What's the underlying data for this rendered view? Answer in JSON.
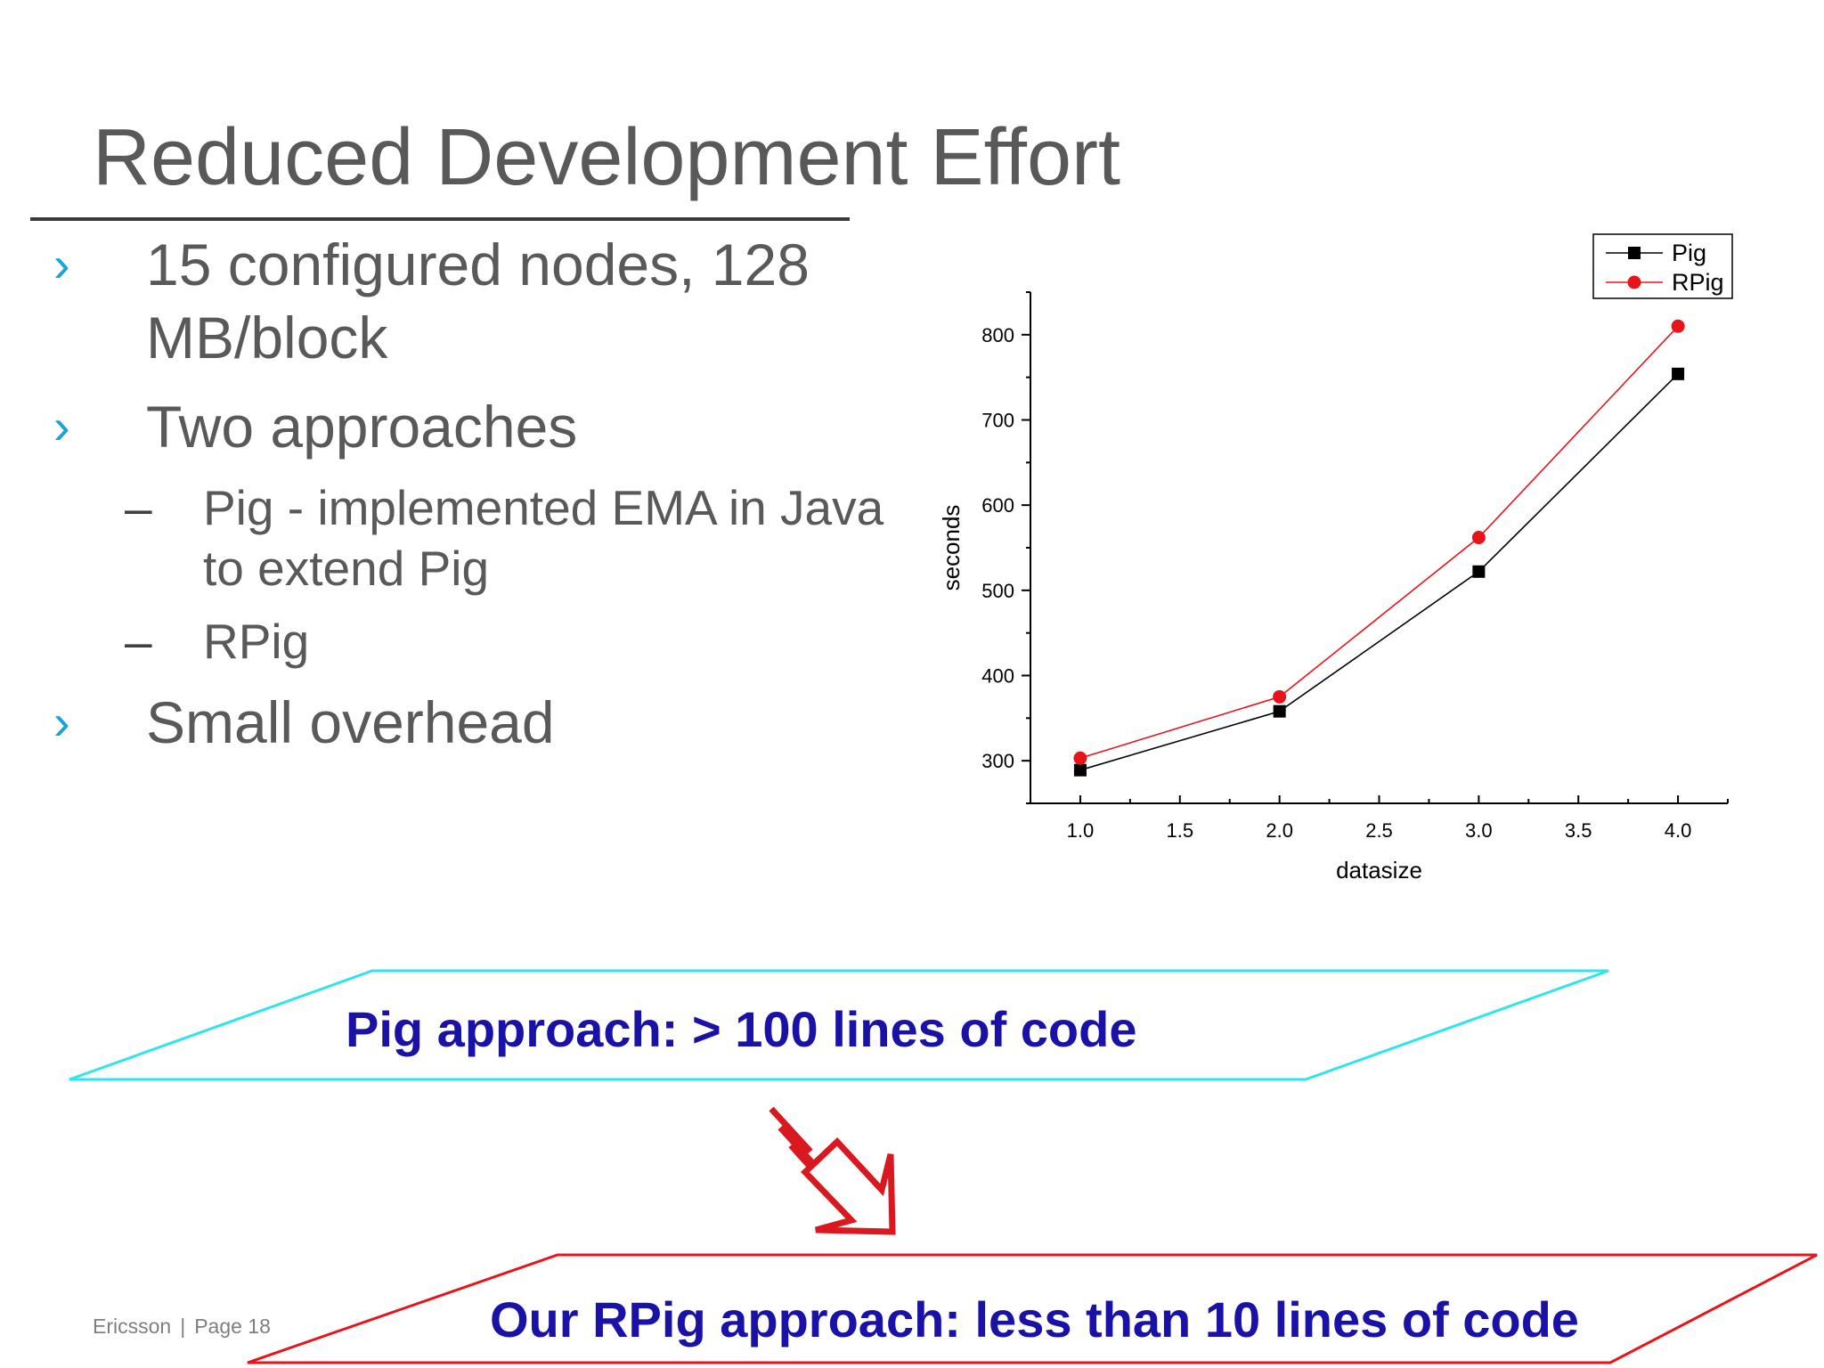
{
  "slide": {
    "title": "Reduced Development Effort"
  },
  "bullets": {
    "b1_line1": "15 configured nodes, 128",
    "b1_line2": "MB/block",
    "b2": "Two approaches",
    "b2_sub1_line1": "Pig - implemented EMA in Java",
    "b2_sub1_line2": "to extend Pig",
    "b2_sub2": "RPig",
    "b3": "Small overhead",
    "mark_l1": "›",
    "mark_l2": "–"
  },
  "chart_data": {
    "type": "line",
    "title": "",
    "xlabel": "datasize",
    "ylabel": "seconds",
    "xlim": [
      0.75,
      4.25
    ],
    "ylim": [
      250,
      850
    ],
    "x_ticks": [
      "1.0",
      "1.5",
      "2.0",
      "2.5",
      "3.0",
      "3.5",
      "4.0"
    ],
    "y_ticks": [
      "300",
      "400",
      "500",
      "600",
      "700",
      "800"
    ],
    "legend_position": "top-right",
    "series": [
      {
        "name": "Pig",
        "color": "#000000",
        "marker": "square",
        "x": [
          1.0,
          2.0,
          3.0,
          4.0
        ],
        "y": [
          289,
          358,
          522,
          754
        ]
      },
      {
        "name": "RPig",
        "color": "#e8141c",
        "marker": "circle",
        "x": [
          1.0,
          2.0,
          3.0,
          4.0
        ],
        "y": [
          303,
          375,
          562,
          810
        ]
      }
    ]
  },
  "callouts": {
    "pig": "Pig approach: > 100 lines of code",
    "rpig": "Our RPig approach: less than 10 lines of code",
    "pig_color": "#2ee6ea",
    "rpig_color": "#e8141c",
    "text_color": "#1a12a6"
  },
  "footer": {
    "company": "Ericsson",
    "separator": "|",
    "page": "Page 18"
  }
}
